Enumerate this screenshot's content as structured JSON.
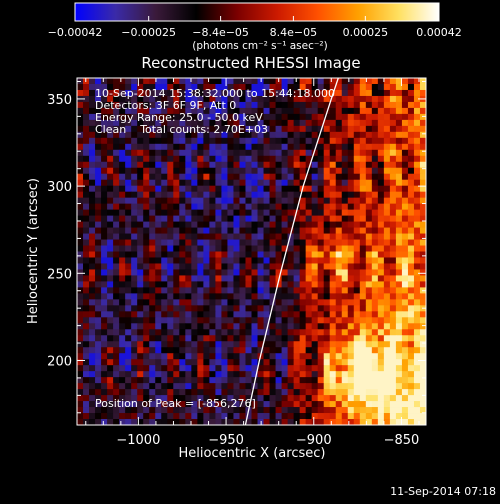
{
  "chart_data": {
    "type": "heatmap",
    "title": "Reconstructed RHESSI Image",
    "xlabel": "Heliocentric X (arcsec)",
    "ylabel": "Heliocentric Y (arcsec)",
    "xlim": [
      -1035,
      -836
    ],
    "ylim": [
      163,
      362
    ],
    "x_ticks": [
      -1000,
      -950,
      -900,
      -850
    ],
    "y_ticks": [
      200,
      250,
      300,
      350
    ],
    "x_tick_labels": [
      "−1000",
      "−950",
      "−900",
      "−850"
    ],
    "y_tick_labels": [
      "200",
      "250",
      "300",
      "350"
    ],
    "colorbar": {
      "range": [
        -0.00042,
        0.00042
      ],
      "tick_values": [
        -0.00042,
        -0.00025,
        -8.4e-05,
        8.4e-05,
        0.00025,
        0.00042
      ],
      "tick_labels": [
        "−0.00042",
        "−0.00025",
        "−8.4e−05",
        "8.4e−05",
        "0.00025",
        "0.00042"
      ],
      "unit": "(photons cm⁻² s⁻¹ asec⁻²)",
      "colors": [
        "#0000ff",
        "#3a2aa8",
        "#3a1a3a",
        "#000000",
        "#7a0000",
        "#cc1a00",
        "#ff5000",
        "#ffa000",
        "#ffe060",
        "#ffffff"
      ]
    },
    "info_lines": [
      "10-Sep-2014 15:38:32.000 to 15:44:18.000",
      "Detectors: 3F 6F 9F, Att 0",
      "Energy Range: 25.0 - 50.0 keV",
      "Clean    Total counts: 2.70E+03"
    ],
    "peak_label": "Position of Peak = [-856,276]",
    "peak_position": [
      -856,
      276
    ],
    "limb_line": [
      [
        -939,
        163
      ],
      [
        -931,
        200
      ],
      [
        -919,
        250
      ],
      [
        -906,
        300
      ],
      [
        -890,
        350
      ],
      [
        -886,
        362
      ]
    ],
    "grid": false
  },
  "footer": {
    "timestamp": "11-Sep-2014 07:18"
  }
}
